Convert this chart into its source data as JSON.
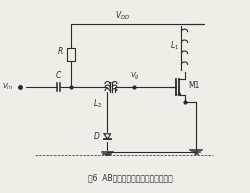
{
  "title": "图6  AB类栅极二极管偏置方式电路图",
  "background": "#f0ede8",
  "line_color": "#2a2a2a",
  "component_color": "#2a2a2a",
  "vdd_label": "V_{DD}",
  "vin_label": "V_{in}",
  "vg_label": "V_g",
  "R_label": "R",
  "C_label": "C",
  "L1_label": "L_1",
  "L2_label": "L_2",
  "D_label": "D",
  "M1_label": "M1",
  "figsize": [
    2.5,
    1.93
  ],
  "dpi": 100
}
